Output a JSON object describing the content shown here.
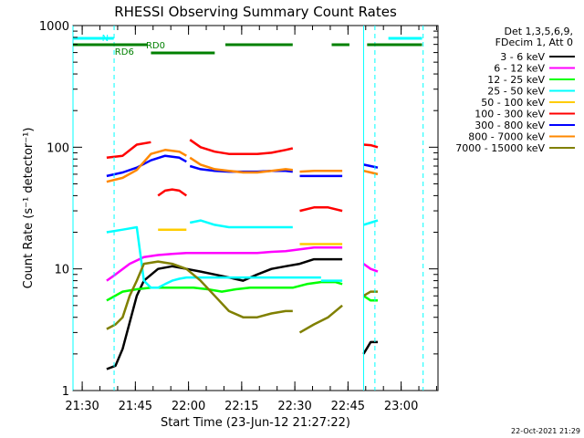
{
  "chart_data": {
    "type": "line",
    "title": "RHESSI Observing Summary Count Rates",
    "xlabel": "Start Time (23-Jun-12 21:27:22)",
    "ylabel": "Count Rate (s⁻¹ detector⁻¹)",
    "y_scale": "log",
    "ylim": [
      1,
      1000
    ],
    "xlim_minutes_after_2127": [
      0,
      103
    ],
    "x_ticks": [
      {
        "label": "21:30",
        "min": 2.6
      },
      {
        "label": "21:45",
        "min": 17.6
      },
      {
        "label": "22:00",
        "min": 32.6
      },
      {
        "label": "22:15",
        "min": 47.6
      },
      {
        "label": "22:30",
        "min": 62.6
      },
      {
        "label": "22:45",
        "min": 77.6
      },
      {
        "label": "23:00",
        "min": 92.6
      }
    ],
    "y_ticks": [
      {
        "label": "1",
        "value": 1
      },
      {
        "label": "10",
        "value": 10
      },
      {
        "label": "100",
        "value": 100
      },
      {
        "label": "1000",
        "value": 1000
      }
    ],
    "legend": {
      "placement": "right",
      "header": [
        "Det 1,3,5,6,9,",
        "FDecim 1, Att 0"
      ]
    },
    "series": [
      {
        "name": "3 - 6 keV",
        "color": "#000000",
        "segments": [
          [
            [
              9.5,
              1.5
            ],
            [
              12,
              1.6
            ],
            [
              14,
              2.2
            ],
            [
              18,
              6
            ],
            [
              20,
              8
            ],
            [
              24,
              10
            ],
            [
              28,
              10.5
            ],
            [
              32,
              10
            ],
            [
              36,
              9.5
            ],
            [
              40,
              9
            ],
            [
              44,
              8.5
            ],
            [
              48,
              8
            ],
            [
              52,
              9
            ],
            [
              56,
              10
            ],
            [
              60,
              10.5
            ],
            [
              64,
              11
            ],
            [
              68,
              12
            ],
            [
              72,
              12
            ],
            [
              76,
              12
            ]
          ],
          [
            [
              82,
              2
            ],
            [
              84,
              2.5
            ],
            [
              86,
              2.5
            ]
          ]
        ]
      },
      {
        "name": "6 - 12 keV",
        "color": "#ff00ff",
        "segments": [
          [
            [
              9.5,
              8
            ],
            [
              12,
              9
            ],
            [
              16,
              11
            ],
            [
              20,
              12.5
            ],
            [
              24,
              13
            ],
            [
              28,
              13.3
            ],
            [
              32,
              13.5
            ],
            [
              36,
              13.5
            ],
            [
              40,
              13.5
            ],
            [
              44,
              13.5
            ],
            [
              48,
              13.5
            ],
            [
              52,
              13.5
            ],
            [
              56,
              13.8
            ],
            [
              60,
              14
            ],
            [
              64,
              14.5
            ],
            [
              68,
              15
            ],
            [
              72,
              15
            ],
            [
              76,
              15
            ]
          ],
          [
            [
              82,
              11
            ],
            [
              84,
              10
            ],
            [
              86,
              9.5
            ]
          ]
        ]
      },
      {
        "name": "12 - 25 keV",
        "color": "#00ff00",
        "segments": [
          [
            [
              9.5,
              5.5
            ],
            [
              14,
              6.5
            ],
            [
              18,
              6.8
            ],
            [
              22,
              7
            ],
            [
              26,
              7
            ],
            [
              30,
              7
            ],
            [
              34,
              7
            ],
            [
              38,
              6.8
            ],
            [
              42,
              6.5
            ],
            [
              46,
              6.8
            ],
            [
              50,
              7
            ],
            [
              54,
              7
            ],
            [
              58,
              7
            ],
            [
              62,
              7
            ],
            [
              66,
              7.5
            ],
            [
              70,
              7.8
            ],
            [
              74,
              7.8
            ],
            [
              76,
              7.5
            ]
          ],
          [
            [
              82,
              6
            ],
            [
              84,
              5.5
            ],
            [
              86,
              5.5
            ]
          ]
        ]
      },
      {
        "name": "25 - 50 keV",
        "color": "#00ffff",
        "segments": [
          [
            [
              9.5,
              20
            ],
            [
              14,
              21
            ],
            [
              18,
              22
            ],
            [
              20,
              8
            ],
            [
              22,
              7
            ],
            [
              24,
              7
            ],
            [
              26,
              7.5
            ],
            [
              28,
              8
            ],
            [
              30,
              8.3
            ],
            [
              32,
              8.5
            ],
            [
              34,
              8.5
            ],
            [
              36,
              8.5
            ],
            [
              38,
              8.5
            ],
            [
              40,
              8.5
            ],
            [
              42,
              8.5
            ],
            [
              44,
              8.5
            ],
            [
              46,
              8.5
            ],
            [
              48,
              8.5
            ],
            [
              50,
              8.5
            ],
            [
              52,
              8.5
            ],
            [
              54,
              8.5
            ],
            [
              56,
              8.5
            ],
            [
              58,
              8.5
            ],
            [
              60,
              8.5
            ],
            [
              62,
              8.5
            ],
            [
              64,
              8.5
            ],
            [
              66,
              8.5
            ],
            [
              68,
              8.5
            ],
            [
              70,
              8.5
            ]
          ],
          [
            [
              33,
              24
            ],
            [
              36,
              25
            ],
            [
              40,
              23
            ],
            [
              44,
              22
            ],
            [
              48,
              22
            ],
            [
              52,
              22
            ],
            [
              56,
              22
            ],
            [
              60,
              22
            ],
            [
              62,
              22
            ]
          ],
          [
            [
              70,
              8
            ],
            [
              74,
              8
            ],
            [
              76,
              8
            ]
          ],
          [
            [
              82,
              23
            ],
            [
              84,
              24
            ],
            [
              86,
              25
            ]
          ]
        ]
      },
      {
        "name": "50 - 100 keV",
        "color": "#ffcc00",
        "segments": [
          [
            [
              24,
              21
            ],
            [
              26,
              21
            ],
            [
              28,
              21
            ],
            [
              30,
              21
            ],
            [
              32,
              21
            ]
          ],
          [
            [
              64,
              16
            ],
            [
              68,
              16
            ],
            [
              72,
              16
            ],
            [
              76,
              16
            ]
          ]
        ]
      },
      {
        "name": "100 - 300 keV",
        "color": "#ff0000",
        "segments": [
          [
            [
              9.5,
              82
            ],
            [
              14,
              85
            ],
            [
              18,
              105
            ],
            [
              22,
              110
            ]
          ],
          [
            [
              24,
              40
            ],
            [
              26,
              44
            ],
            [
              28,
              45
            ],
            [
              30,
              44
            ],
            [
              32,
              40
            ]
          ],
          [
            [
              33,
              115
            ],
            [
              36,
              100
            ],
            [
              40,
              92
            ],
            [
              44,
              88
            ],
            [
              48,
              88
            ],
            [
              52,
              88
            ],
            [
              56,
              90
            ],
            [
              60,
              95
            ],
            [
              62,
              98
            ]
          ],
          [
            [
              64,
              30
            ],
            [
              68,
              32
            ],
            [
              72,
              32
            ],
            [
              76,
              30
            ]
          ],
          [
            [
              82,
              105
            ],
            [
              84,
              104
            ],
            [
              86,
              100
            ]
          ]
        ]
      },
      {
        "name": "300 - 800 keV",
        "color": "#0000ff",
        "segments": [
          [
            [
              9.5,
              58
            ],
            [
              14,
              62
            ],
            [
              18,
              68
            ],
            [
              22,
              78
            ],
            [
              26,
              85
            ],
            [
              30,
              82
            ],
            [
              32,
              76
            ]
          ],
          [
            [
              33,
              70
            ],
            [
              36,
              66
            ],
            [
              40,
              64
            ],
            [
              44,
              63
            ],
            [
              48,
              63
            ],
            [
              52,
              63
            ],
            [
              56,
              64
            ],
            [
              60,
              64
            ],
            [
              62,
              63
            ]
          ],
          [
            [
              64,
              58
            ],
            [
              68,
              58
            ],
            [
              72,
              58
            ],
            [
              76,
              58
            ]
          ],
          [
            [
              82,
              72
            ],
            [
              84,
              70
            ],
            [
              86,
              68
            ]
          ]
        ]
      },
      {
        "name": "800 - 7000 keV",
        "color": "#ff8800",
        "segments": [
          [
            [
              9.5,
              52
            ],
            [
              14,
              56
            ],
            [
              18,
              65
            ],
            [
              22,
              88
            ],
            [
              26,
              95
            ],
            [
              30,
              92
            ],
            [
              32,
              85
            ]
          ],
          [
            [
              33,
              82
            ],
            [
              36,
              72
            ],
            [
              40,
              66
            ],
            [
              44,
              64
            ],
            [
              48,
              62
            ],
            [
              52,
              62
            ],
            [
              56,
              64
            ],
            [
              60,
              66
            ],
            [
              62,
              65
            ]
          ],
          [
            [
              64,
              63
            ],
            [
              68,
              64
            ],
            [
              72,
              64
            ],
            [
              76,
              64
            ]
          ],
          [
            [
              82,
              64
            ],
            [
              84,
              62
            ],
            [
              86,
              60
            ]
          ]
        ]
      },
      {
        "name": "7000 - 15000 keV",
        "color": "#808000",
        "segments": [
          [
            [
              9.5,
              3.2
            ],
            [
              12,
              3.5
            ],
            [
              14,
              4
            ],
            [
              16,
              6
            ],
            [
              18,
              8
            ],
            [
              20,
              11
            ],
            [
              24,
              11.5
            ],
            [
              28,
              11
            ],
            [
              32,
              10
            ],
            [
              36,
              8
            ],
            [
              40,
              6
            ],
            [
              44,
              4.5
            ],
            [
              48,
              4
            ],
            [
              52,
              4
            ],
            [
              56,
              4.3
            ],
            [
              60,
              4.5
            ],
            [
              62,
              4.5
            ]
          ],
          [
            [
              64,
              3
            ],
            [
              68,
              3.5
            ],
            [
              72,
              4
            ],
            [
              76,
              5
            ]
          ],
          [
            [
              82,
              6
            ],
            [
              84,
              6.5
            ],
            [
              86,
              6.5
            ]
          ]
        ]
      }
    ],
    "annotations": [
      {
        "label": "N",
        "color": "#00ffff",
        "bar_segments_min": [
          [
            0,
            11.5
          ],
          [
            89,
            98.5
          ]
        ]
      },
      {
        "label": "RD0",
        "color": "#008000",
        "bar_segments_min": [
          [
            0,
            21
          ],
          [
            43,
            62
          ],
          [
            73,
            78
          ],
          [
            83,
            98.5
          ]
        ]
      },
      {
        "label": "RD6",
        "color": "#008000",
        "bar_segments_min": [
          [
            22,
            40
          ]
        ]
      }
    ],
    "vlines_solid_min": [
      0,
      82
    ],
    "vlines_dashed_min": [
      11.6,
      85.2,
      98.8
    ],
    "colors": {
      "background": "#ffffff",
      "axes": "#000000"
    }
  },
  "footer_stamp": "22-Oct-2021 21:29"
}
